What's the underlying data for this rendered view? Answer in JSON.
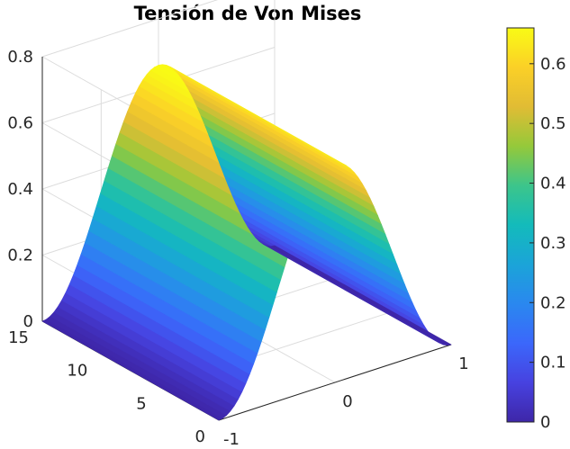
{
  "chart_data": {
    "type": "surface",
    "title": "Tensión de Von Mises",
    "xlabel": "",
    "ylabel": "",
    "zlabel": "",
    "x_ticks": [
      "-1",
      "0",
      "1"
    ],
    "y_ticks": [
      "0",
      "5",
      "10",
      "15"
    ],
    "z_ticks": [
      "0",
      "0.2",
      "0.4",
      "0.6",
      "0.8"
    ],
    "xlim": [
      -1,
      1
    ],
    "ylim": [
      0,
      15
    ],
    "zlim": [
      0,
      0.8
    ],
    "grid": true,
    "colormap": "parula",
    "colorbar": {
      "position": "right",
      "range": [
        0,
        0.66
      ],
      "ticks": [
        "0",
        "0.1",
        "0.2",
        "0.3",
        "0.4",
        "0.5",
        "0.6"
      ]
    },
    "surface": {
      "x_extent": [
        -1,
        1
      ],
      "y_extent": [
        0,
        15
      ],
      "profile": "z = 0.66 * cos(pi*x/2)^2",
      "z_max": 0.66,
      "z_min": 0
    }
  }
}
